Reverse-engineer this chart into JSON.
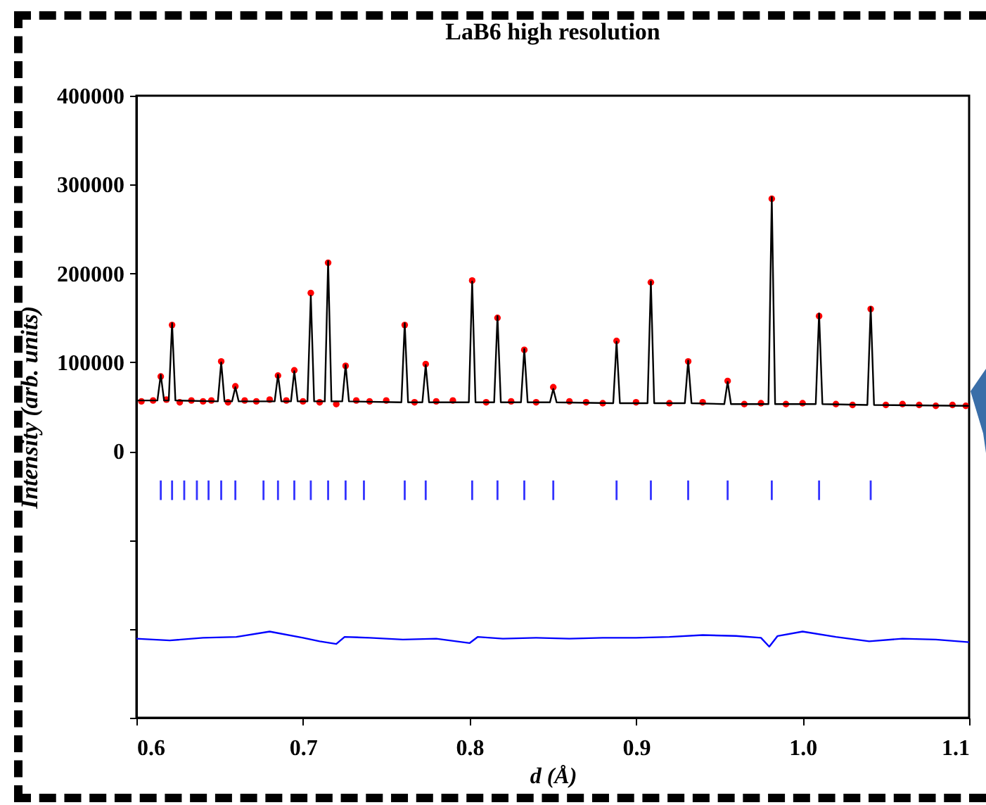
{
  "chart_data": {
    "type": "scatter",
    "title": "LaB6 high resolution",
    "xlabel": "d (Å)",
    "ylabel": "Intensity (arb. units)",
    "xlim": [
      0.6,
      1.1
    ],
    "xticks": [
      0.6,
      0.7,
      0.8,
      0.9,
      {
        "value": 1,
        "label": "1.0"
      },
      1.1
    ],
    "ylim": [
      -300000,
      400000
    ],
    "yticks": [
      {
        "value": -300000,
        "label": null
      },
      {
        "value": -200000,
        "label": null
      },
      {
        "value": -100000,
        "label": null
      },
      0,
      100000,
      200000,
      300000,
      400000
    ],
    "grid": false,
    "series": [
      {
        "marker": "circle",
        "color": "#ff0000",
        "x": [
          0.603,
          0.61,
          0.6146,
          0.618,
          0.6214,
          0.626,
          0.633,
          0.64,
          0.645,
          0.6509,
          0.655,
          0.6594,
          0.665,
          0.672,
          0.68,
          0.685,
          0.69,
          0.6948,
          0.7,
          0.7047,
          0.71,
          0.7151,
          0.72,
          0.7256,
          0.732,
          0.74,
          0.75,
          0.7611,
          0.767,
          0.7737,
          0.78,
          0.79,
          0.8016,
          0.81,
          0.8168,
          0.825,
          0.8329,
          0.84,
          0.8503,
          0.86,
          0.87,
          0.88,
          0.8883,
          0.9,
          0.9089,
          0.92,
          0.9313,
          0.94,
          0.955,
          0.965,
          0.975,
          0.9815,
          0.99,
          1.0,
          1.0099,
          1.02,
          1.03,
          1.0409,
          1.05,
          1.06,
          1.07,
          1.08,
          1.09,
          1.098
        ],
        "values": [
          56000,
          57000,
          84000,
          58000,
          142000,
          55000,
          57000,
          56000,
          57000,
          101000,
          55000,
          73000,
          57000,
          56000,
          58000,
          85000,
          57000,
          91000,
          56000,
          178000,
          55000,
          212000,
          53000,
          96000,
          57000,
          56000,
          57000,
          142000,
          55000,
          98000,
          56000,
          57000,
          192000,
          55000,
          150000,
          56000,
          114000,
          55000,
          72000,
          56000,
          55000,
          54000,
          124000,
          55000,
          190000,
          54000,
          101000,
          55000,
          79000,
          53000,
          54000,
          284000,
          53000,
          54000,
          152000,
          53000,
          52000,
          160000,
          52000,
          53000,
          52000,
          51000,
          52000,
          51000
        ]
      },
      {
        "type": "line",
        "line_style": "solid",
        "color": "#000000",
        "x": [
          0.6,
          0.6126,
          0.6146,
          0.6166,
          0.6194,
          0.6214,
          0.6234,
          0.6489,
          0.6509,
          0.6529,
          0.6574,
          0.6594,
          0.6614,
          0.683,
          0.685,
          0.687,
          0.6928,
          0.6948,
          0.6968,
          0.7027,
          0.7047,
          0.7067,
          0.7131,
          0.7151,
          0.7171,
          0.7236,
          0.7256,
          0.7276,
          0.7591,
          0.7611,
          0.7631,
          0.7717,
          0.7737,
          0.7757,
          0.7996,
          0.8016,
          0.8036,
          0.8148,
          0.8168,
          0.8188,
          0.8309,
          0.8329,
          0.8349,
          0.8483,
          0.8503,
          0.8523,
          0.8863,
          0.8883,
          0.8903,
          0.9069,
          0.9089,
          0.9109,
          0.9293,
          0.9313,
          0.9333,
          0.953,
          0.955,
          0.957,
          0.9795,
          0.9815,
          0.9835,
          1.0079,
          1.0099,
          1.0119,
          1.0389,
          1.0409,
          1.0429,
          1.1
        ],
        "values": [
          57000,
          57000,
          86000,
          57000,
          57000,
          144000,
          57000,
          56000,
          100000,
          56000,
          56000,
          72000,
          56000,
          56000,
          86000,
          56000,
          56000,
          90000,
          56000,
          56000,
          175000,
          56000,
          56000,
          214000,
          56000,
          56000,
          97000,
          56000,
          55000,
          144000,
          55000,
          55000,
          97000,
          55000,
          55000,
          191000,
          55000,
          55000,
          152000,
          55000,
          55000,
          115000,
          55000,
          55000,
          70000,
          55000,
          54000,
          123000,
          54000,
          54000,
          191000,
          54000,
          54000,
          102000,
          54000,
          53000,
          78000,
          53000,
          53000,
          286000,
          53000,
          53000,
          155000,
          53000,
          52000,
          162000,
          52000,
          51000
        ]
      },
      {
        "type": "bar",
        "color": "#3333ff",
        "x": [
          0.6146,
          0.6214,
          0.6287,
          0.6363,
          0.6433,
          0.6509,
          0.6594,
          0.6763,
          0.685,
          0.6948,
          0.7047,
          0.7151,
          0.7256,
          0.7366,
          0.7611,
          0.7737,
          0.8016,
          0.8168,
          0.8329,
          0.8503,
          0.8883,
          0.9089,
          0.9313,
          0.955,
          0.9815,
          1.0099,
          1.0409
        ],
        "base": [
          -55000,
          -55000,
          -55000,
          -55000,
          -55000,
          -55000,
          -55000,
          -55000,
          -55000,
          -55000,
          -55000,
          -55000,
          -55000,
          -55000,
          -55000,
          -55000,
          -55000,
          -55000,
          -55000,
          -55000,
          -55000,
          -55000,
          -55000,
          -55000,
          -55000,
          -55000,
          -55000
        ],
        "values": [
          22000,
          22000,
          22000,
          22000,
          22000,
          22000,
          22000,
          22000,
          22000,
          22000,
          22000,
          22000,
          22000,
          22000,
          22000,
          22000,
          22000,
          22000,
          22000,
          22000,
          22000,
          22000,
          22000,
          22000,
          22000,
          22000,
          22000
        ]
      },
      {
        "type": "line",
        "line_style": "solid",
        "color": "#0000ff",
        "x": [
          0.6,
          0.62,
          0.64,
          0.66,
          0.68,
          0.7,
          0.71,
          0.72,
          0.725,
          0.74,
          0.76,
          0.78,
          0.8,
          0.805,
          0.82,
          0.84,
          0.86,
          0.88,
          0.9,
          0.92,
          0.94,
          0.96,
          0.975,
          0.98,
          0.985,
          1.0,
          1.02,
          1.04,
          1.06,
          1.08,
          1.1
        ],
        "values": [
          -211000,
          -213000,
          -210000,
          -209000,
          -203000,
          -210000,
          -214000,
          -217000,
          -209000,
          -210000,
          -212000,
          -211000,
          -216000,
          -209000,
          -211000,
          -210000,
          -211000,
          -210000,
          -210000,
          -209000,
          -207000,
          -208000,
          -210000,
          -220000,
          -208000,
          -203000,
          -209000,
          -214000,
          -211000,
          -212000,
          -215000
        ]
      }
    ]
  }
}
